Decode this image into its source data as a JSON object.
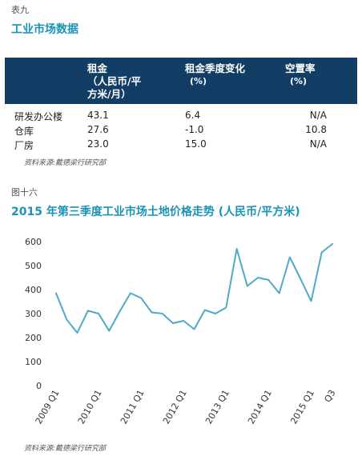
{
  "table9": {
    "label": "表九",
    "title": "工业市场数据",
    "headers": {
      "rent_line1": "租金",
      "rent_line2": "（人民币/平",
      "rent_line3": "方米/月）",
      "change_line1": "租金季度变化",
      "change_line2": "(%)",
      "vacancy_line1": "空置率",
      "vacancy_line2": "(%)"
    },
    "rows": [
      {
        "name": "研发办公楼",
        "rent": "43.1",
        "change": "6.4",
        "vacancy": "N/A"
      },
      {
        "name": "仓库",
        "rent": "27.6",
        "change": "-1.0",
        "vacancy": "10.8"
      },
      {
        "name": "厂房",
        "rent": "23.0",
        "change": "15.0",
        "vacancy": "N/A"
      }
    ],
    "source": "资料来源:戴德梁行研究部"
  },
  "figure16": {
    "label": "图十六",
    "title": "2015 年第三季度工业市场土地价格走势 (人民币/平方米)",
    "source": "资料来源:戴德梁行研究部"
  },
  "chart_data": {
    "type": "line",
    "title": "2015 年第三季度工业市场土地价格走势 (人民币/平方米)",
    "x_tick_labels": [
      "2009 Q1",
      "2010 Q1",
      "2011 Q1",
      "2012 Q1",
      "2013 Q1",
      "2014 Q1",
      "2015 Q1",
      "Q3"
    ],
    "x_tick_index": [
      0,
      4,
      8,
      12,
      16,
      20,
      24,
      26
    ],
    "y_ticks": [
      0,
      100,
      200,
      300,
      400,
      500,
      600
    ],
    "ylim": [
      0,
      600
    ],
    "grid": false,
    "line_color": "#4fa9c8",
    "series": [
      {
        "values": [
          385,
          275,
          220,
          312,
          300,
          228,
          310,
          385,
          365,
          305,
          300,
          260,
          270,
          235,
          315,
          300,
          325,
          570,
          415,
          450,
          440,
          385,
          535,
          445,
          352,
          555,
          590
        ]
      }
    ]
  }
}
